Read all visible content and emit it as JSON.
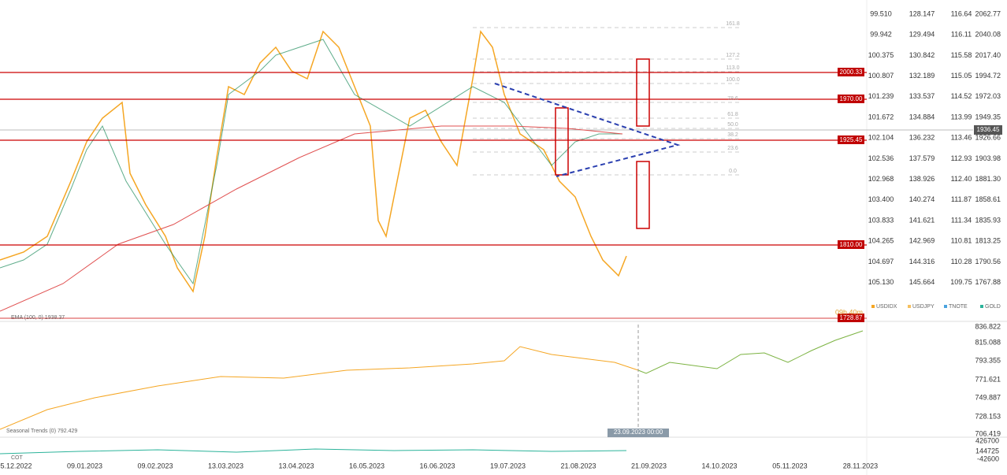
{
  "price_axes": [
    {
      "name": "USDIDX",
      "labels": [
        "99.510",
        "99.942",
        "100.375",
        "100.807",
        "101.239",
        "101.672",
        "102.104",
        "102.536",
        "102.968",
        "103.400",
        "103.833",
        "104.265",
        "104.697",
        "105.130"
      ]
    },
    {
      "name": "USDJPY",
      "labels": [
        "128.147",
        "129.494",
        "130.842",
        "132.189",
        "133.537",
        "134.884",
        "136.232",
        "137.579",
        "138.926",
        "140.274",
        "141.621",
        "142.969",
        "144.316",
        "145.664"
      ]
    },
    {
      "name": "TNOTE",
      "labels": [
        "116.64",
        "116.11",
        "115.58",
        "115.05",
        "114.52",
        "113.99",
        "113.46",
        "112.93",
        "112.40",
        "111.87",
        "111.34",
        "110.81",
        "110.28",
        "109.75"
      ]
    },
    {
      "name": "GOLD",
      "labels": [
        "2062.77",
        "2040.08",
        "2017.40",
        "1994.72",
        "1972.03",
        "1949.35",
        "1926.66",
        "1903.98",
        "1881.30",
        "1858.61",
        "1835.93",
        "1813.25",
        "1790.56",
        "1767.88"
      ]
    }
  ],
  "levels": [
    "2000.33",
    "1970.00",
    "1925.45",
    "1810.00",
    "1728.87"
  ],
  "current_price": "1936.45",
  "countdown": "09h 40m",
  "fib_labels": [
    "161.8",
    "127.2",
    "113.0",
    "100.0",
    "78.6",
    "61.8",
    "50.0",
    "38.2",
    "23.6",
    "0.0"
  ],
  "ema_label": "EMA (100, 0) 1938.37",
  "seasonal": {
    "label": "Seasonal Trends (0) 792.429",
    "axis": [
      "836.822",
      "815.088",
      "793.355",
      "771.621",
      "749.887",
      "728.153",
      "706.419"
    ],
    "crosshair": "23.09.2023 00:00"
  },
  "cot": {
    "label": "COT",
    "axis": [
      "426700",
      "144725",
      "-42600"
    ]
  },
  "dates": [
    "05.12.2022",
    "09.01.2023",
    "09.02.2023",
    "13.03.2023",
    "13.04.2023",
    "16.05.2023",
    "16.06.2023",
    "19.07.2023",
    "21.08.2023",
    "21.09.2023",
    "14.10.2023",
    "05.11.2023",
    "28.11.2023"
  ]
}
